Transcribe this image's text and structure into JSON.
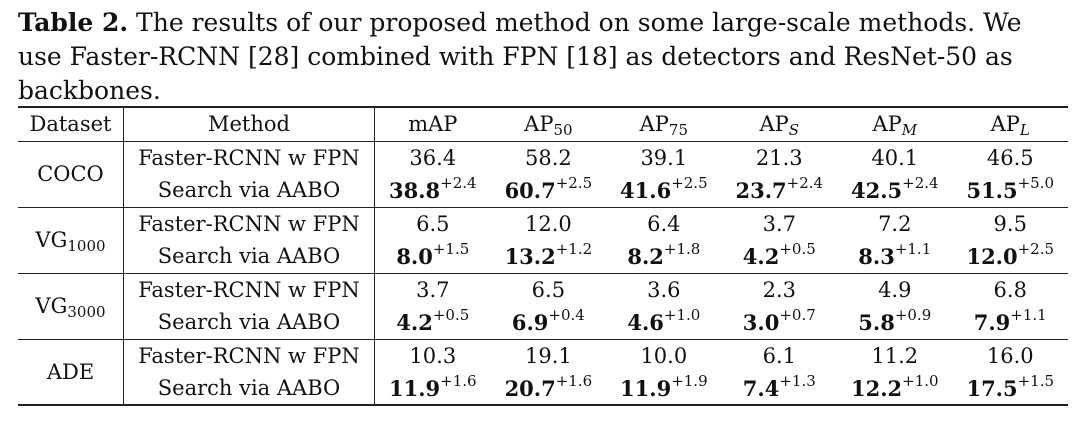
{
  "caption": {
    "label": "Table 2.",
    "text": " The results of our proposed method on some large-scale methods. We use Faster-RCNN [28] combined with FPN [18] as detectors and ResNet-50 as backbones."
  },
  "table": {
    "headers": {
      "dataset": "Dataset",
      "method": "Method",
      "map": "mAP",
      "ap": "AP",
      "ap50_sub": "50",
      "ap75_sub": "75",
      "aps_sub": "S",
      "apm_sub": "M",
      "apl_sub": "L"
    },
    "groups": [
      {
        "dataset": "COCO",
        "dataset_sub": "",
        "baseline": {
          "method": "Faster-RCNN w FPN",
          "values": [
            "36.4",
            "58.2",
            "39.1",
            "21.3",
            "40.1",
            "46.5"
          ]
        },
        "ours": {
          "method": "Search via AABO",
          "values": [
            "38.8",
            "60.7",
            "41.6",
            "23.7",
            "42.5",
            "51.5"
          ],
          "gains": [
            "+2.4",
            "+2.5",
            "+2.5",
            "+2.4",
            "+2.4",
            "+5.0"
          ]
        }
      },
      {
        "dataset": "VG",
        "dataset_sub": "1000",
        "baseline": {
          "method": "Faster-RCNN w FPN",
          "values": [
            "6.5",
            "12.0",
            "6.4",
            "3.7",
            "7.2",
            "9.5"
          ]
        },
        "ours": {
          "method": "Search via AABO",
          "values": [
            "8.0",
            "13.2",
            "8.2",
            "4.2",
            "8.3",
            "12.0"
          ],
          "gains": [
            "+1.5",
            "+1.2",
            "+1.8",
            "+0.5",
            "+1.1",
            "+2.5"
          ]
        }
      },
      {
        "dataset": "VG",
        "dataset_sub": "3000",
        "baseline": {
          "method": "Faster-RCNN w FPN",
          "values": [
            "3.7",
            "6.5",
            "3.6",
            "2.3",
            "4.9",
            "6.8"
          ]
        },
        "ours": {
          "method": "Search via AABO",
          "values": [
            "4.2",
            "6.9",
            "4.6",
            "3.0",
            "5.8",
            "7.9"
          ],
          "gains": [
            "+0.5",
            "+0.4",
            "+1.0",
            "+0.7",
            "+0.9",
            "+1.1"
          ]
        }
      },
      {
        "dataset": "ADE",
        "dataset_sub": "",
        "baseline": {
          "method": "Faster-RCNN w FPN",
          "values": [
            "10.3",
            "19.1",
            "10.0",
            "6.1",
            "11.2",
            "16.0"
          ]
        },
        "ours": {
          "method": "Search via AABO",
          "values": [
            "11.9",
            "20.7",
            "11.9",
            "7.4",
            "12.2",
            "17.5"
          ],
          "gains": [
            "+1.6",
            "+1.6",
            "+1.9",
            "+1.3",
            "+1.0",
            "+1.5"
          ]
        }
      }
    ]
  }
}
